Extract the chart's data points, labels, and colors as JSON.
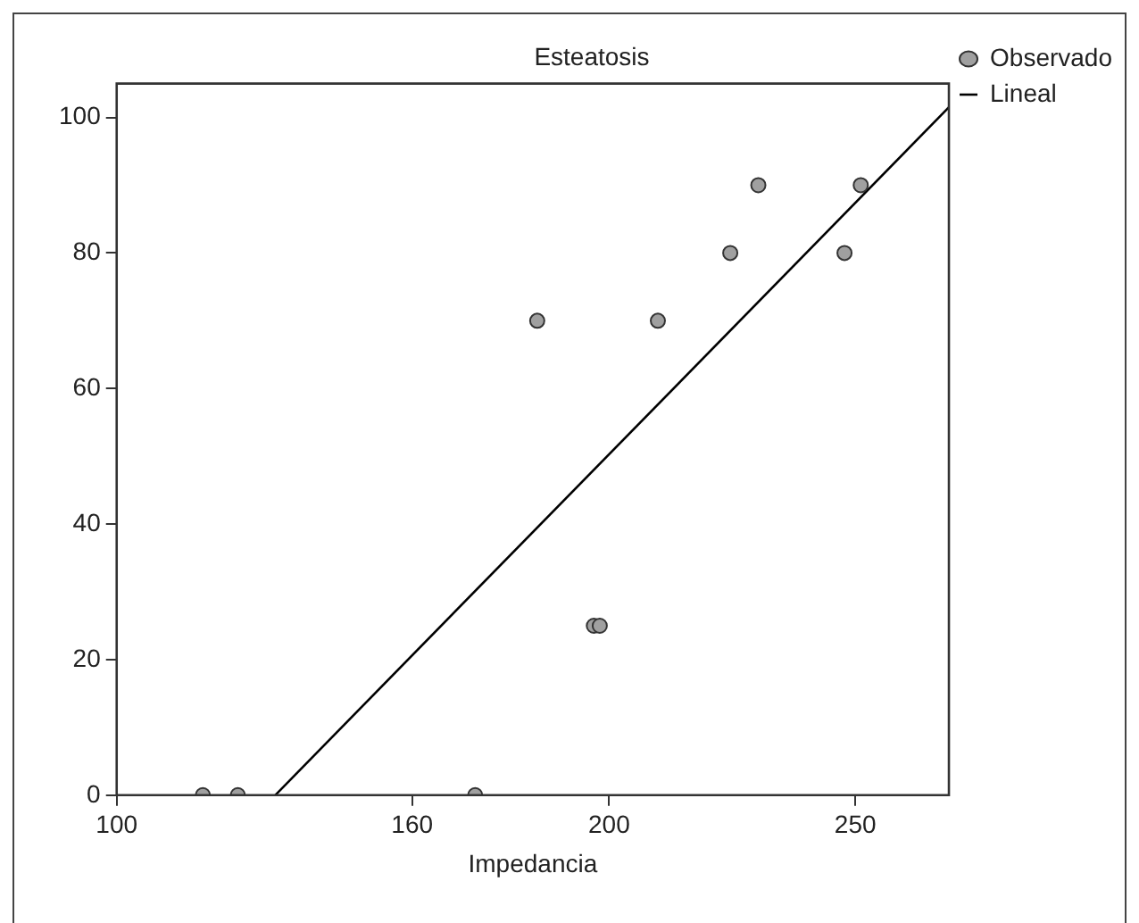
{
  "chart_data": {
    "type": "scatter",
    "title": "Esteatosis",
    "xlabel": "Impedancia",
    "xlim": [
      100,
      269
    ],
    "xticks": [
      100,
      160,
      200,
      250
    ],
    "ylim": [
      0,
      105
    ],
    "yticks": [
      0,
      20,
      40,
      60,
      80,
      100
    ],
    "grid": false,
    "legend": "top right",
    "series": [
      {
        "name": "Observado",
        "marker": "circle",
        "color": "#a0a0a0",
        "x": [
          117.5,
          124.6,
          172.8,
          185.4,
          196.9,
          198.1,
          209.9,
          224.6,
          230.3,
          247.8,
          251.1
        ],
        "values": [
          0,
          0,
          0,
          70,
          25,
          25,
          70,
          80,
          90,
          80,
          90
        ]
      },
      {
        "name": "Lineal",
        "type": "line",
        "color": "#000000",
        "x": [
          132.2,
          269
        ],
        "values": [
          0,
          101.5
        ]
      }
    ]
  }
}
